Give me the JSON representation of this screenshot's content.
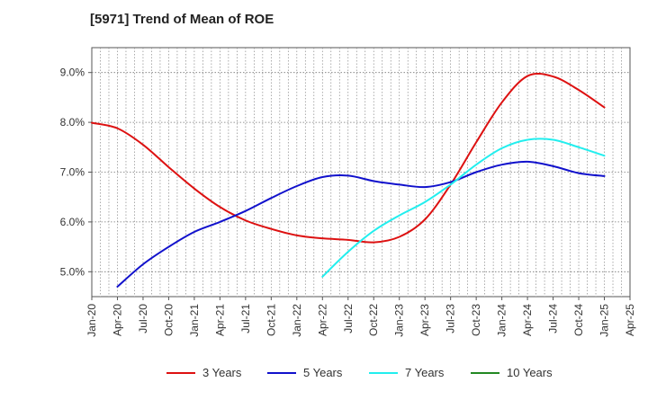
{
  "chart_data": {
    "type": "line",
    "title": "[5971]  Trend of Mean of ROE",
    "y_tick_labels": [
      "5.0%",
      "6.0%",
      "7.0%",
      "8.0%",
      "9.0%"
    ],
    "y_ticks": [
      5.0,
      6.0,
      7.0,
      8.0,
      9.0
    ],
    "ylim": [
      4.5,
      9.5
    ],
    "x_tick_labels": [
      "Jan-20",
      "Apr-20",
      "Jul-20",
      "Oct-20",
      "Jan-21",
      "Apr-21",
      "Jul-21",
      "Oct-21",
      "Jan-22",
      "Apr-22",
      "Jul-22",
      "Oct-22",
      "Jan-23",
      "Apr-23",
      "Jul-23",
      "Oct-23",
      "Jan-24",
      "Apr-24",
      "Jul-24",
      "Oct-24",
      "Jan-25",
      "Apr-25"
    ],
    "grid": true,
    "legend_position": "bottom",
    "series": [
      {
        "name": "3 Years",
        "color": "#dd1111",
        "x": [
          "Jan-20",
          "Apr-20",
          "Jul-20",
          "Oct-20",
          "Jan-21",
          "Apr-21",
          "Jul-21",
          "Oct-21",
          "Jan-22",
          "Apr-22",
          "Jul-22",
          "Oct-22",
          "Jan-23",
          "Apr-23",
          "Jul-23",
          "Oct-23",
          "Jan-24",
          "Apr-24",
          "Jul-24",
          "Oct-24",
          "Jan-25"
        ],
        "values": [
          7.99,
          7.88,
          7.55,
          7.1,
          6.67,
          6.3,
          6.03,
          5.86,
          5.73,
          5.67,
          5.64,
          5.59,
          5.7,
          6.05,
          6.75,
          7.6,
          8.4,
          8.93,
          8.92,
          8.65,
          8.3
        ]
      },
      {
        "name": "5 Years",
        "color": "#1111cc",
        "x": [
          "Apr-20",
          "Jul-20",
          "Oct-20",
          "Jan-21",
          "Apr-21",
          "Jul-21",
          "Oct-21",
          "Jan-22",
          "Apr-22",
          "Jul-22",
          "Oct-22",
          "Jan-23",
          "Apr-23",
          "Jul-23",
          "Oct-23",
          "Jan-24",
          "Apr-24",
          "Jul-24",
          "Oct-24",
          "Jan-25"
        ],
        "values": [
          4.7,
          5.15,
          5.5,
          5.8,
          6.0,
          6.22,
          6.48,
          6.72,
          6.9,
          6.93,
          6.82,
          6.75,
          6.7,
          6.8,
          7.0,
          7.15,
          7.21,
          7.12,
          6.98,
          6.92
        ]
      },
      {
        "name": "7 Years",
        "color": "#22eeee",
        "x": [
          "Apr-22",
          "Jul-22",
          "Oct-22",
          "Jan-23",
          "Apr-23",
          "Jul-23",
          "Oct-23",
          "Jan-24",
          "Apr-24",
          "Jul-24",
          "Oct-24",
          "Jan-25"
        ],
        "values": [
          4.9,
          5.4,
          5.82,
          6.13,
          6.4,
          6.75,
          7.15,
          7.48,
          7.65,
          7.65,
          7.5,
          7.33
        ]
      },
      {
        "name": "10 Years",
        "color": "#228822",
        "x": [],
        "values": []
      }
    ]
  }
}
